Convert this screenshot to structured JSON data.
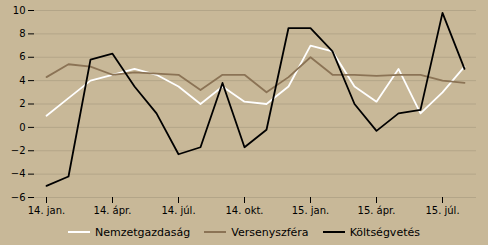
{
  "chart_data": {
    "type": "line",
    "categories": [
      "14. jan.",
      null,
      null,
      "14. ápr.",
      null,
      null,
      "14. júl.",
      null,
      null,
      "14. okt.",
      null,
      null,
      "15. jan.",
      null,
      null,
      "15. ápr.",
      null,
      null,
      "15. júl.",
      null
    ],
    "series": [
      {
        "name": "Nemzetgazdaság",
        "color": "#ffffff",
        "values": [
          1.0,
          2.5,
          4.0,
          4.5,
          5.0,
          4.5,
          3.5,
          2.0,
          3.5,
          2.2,
          2.0,
          3.5,
          7.0,
          6.5,
          3.5,
          2.2,
          5.0,
          1.2,
          3.0,
          5.2
        ]
      },
      {
        "name": "Versenyszféra",
        "color": "#8b7355",
        "values": [
          4.3,
          5.4,
          5.2,
          4.5,
          4.7,
          4.6,
          4.5,
          3.2,
          4.5,
          4.5,
          3.0,
          4.3,
          6.0,
          4.5,
          4.5,
          4.4,
          4.5,
          4.5,
          4.0,
          3.8
        ]
      },
      {
        "name": "Költségvetés",
        "color": "#000000",
        "values": [
          -5.0,
          -4.2,
          5.8,
          6.3,
          3.5,
          1.2,
          -2.3,
          -1.7,
          3.8,
          -1.7,
          -0.2,
          8.5,
          8.5,
          6.5,
          2.0,
          -0.3,
          1.2,
          1.5,
          9.8,
          5.0
        ]
      }
    ],
    "ylim": [
      -6,
      10
    ],
    "yticks": [
      -6,
      -4,
      -2,
      0,
      2,
      4,
      6,
      8,
      10
    ],
    "grid": true,
    "legend": "bottom"
  }
}
